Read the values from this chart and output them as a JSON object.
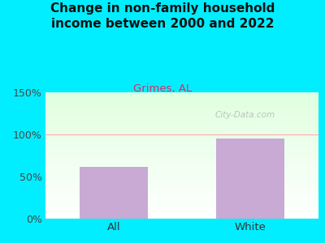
{
  "title": "Change in non-family household\nincome between 2000 and 2022",
  "subtitle": "Grimes, AL",
  "categories": [
    "All",
    "White"
  ],
  "values": [
    62,
    95
  ],
  "bar_color": "#c8aad4",
  "title_color": "#111111",
  "subtitle_color": "#cc3366",
  "background_outer": "#00eeff",
  "background_inner_top": "#e8ffe8",
  "background_inner_bottom": "#ffffff",
  "ylim": [
    0,
    150
  ],
  "yticks": [
    0,
    50,
    100,
    150
  ],
  "ytick_labels": [
    "0%",
    "50%",
    "100%",
    "150%"
  ],
  "watermark": "City-Data.com",
  "ref_line": 100,
  "ref_line_color": "#ffaaaa",
  "bar_width": 0.5
}
